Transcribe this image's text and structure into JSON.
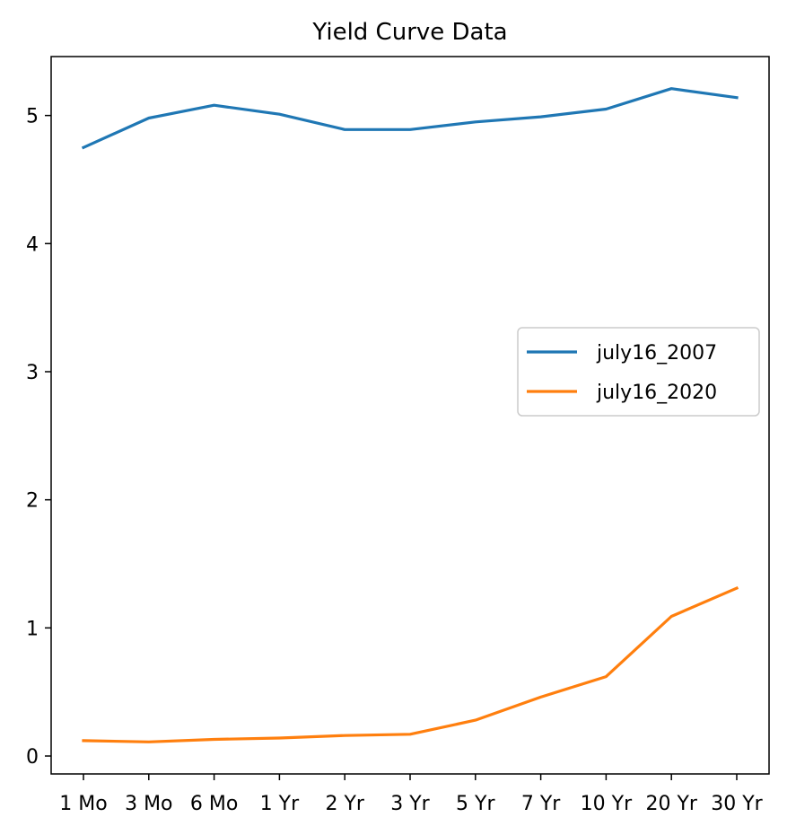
{
  "chart_data": {
    "type": "line",
    "title": "Yield Curve Data",
    "xlabel": "",
    "ylabel": "",
    "categories": [
      "1 Mo",
      "3 Mo",
      "6 Mo",
      "1 Yr",
      "2 Yr",
      "3 Yr",
      "5 Yr",
      "7 Yr",
      "10 Yr",
      "20 Yr",
      "30 Yr"
    ],
    "series": [
      {
        "name": "july16_2007",
        "color": "#1f77b4",
        "values": [
          4.75,
          4.98,
          5.08,
          5.01,
          4.89,
          4.89,
          4.95,
          4.99,
          5.05,
          5.21,
          5.14
        ]
      },
      {
        "name": "july16_2020",
        "color": "#ff7f0e",
        "values": [
          0.12,
          0.11,
          0.13,
          0.14,
          0.16,
          0.17,
          0.28,
          0.46,
          0.62,
          1.09,
          1.31
        ]
      }
    ],
    "ylim": [
      -0.14,
      5.46
    ],
    "yticks": [
      "0",
      "1",
      "2",
      "3",
      "4",
      "5"
    ],
    "grid": false,
    "legend_position": "center-right"
  }
}
